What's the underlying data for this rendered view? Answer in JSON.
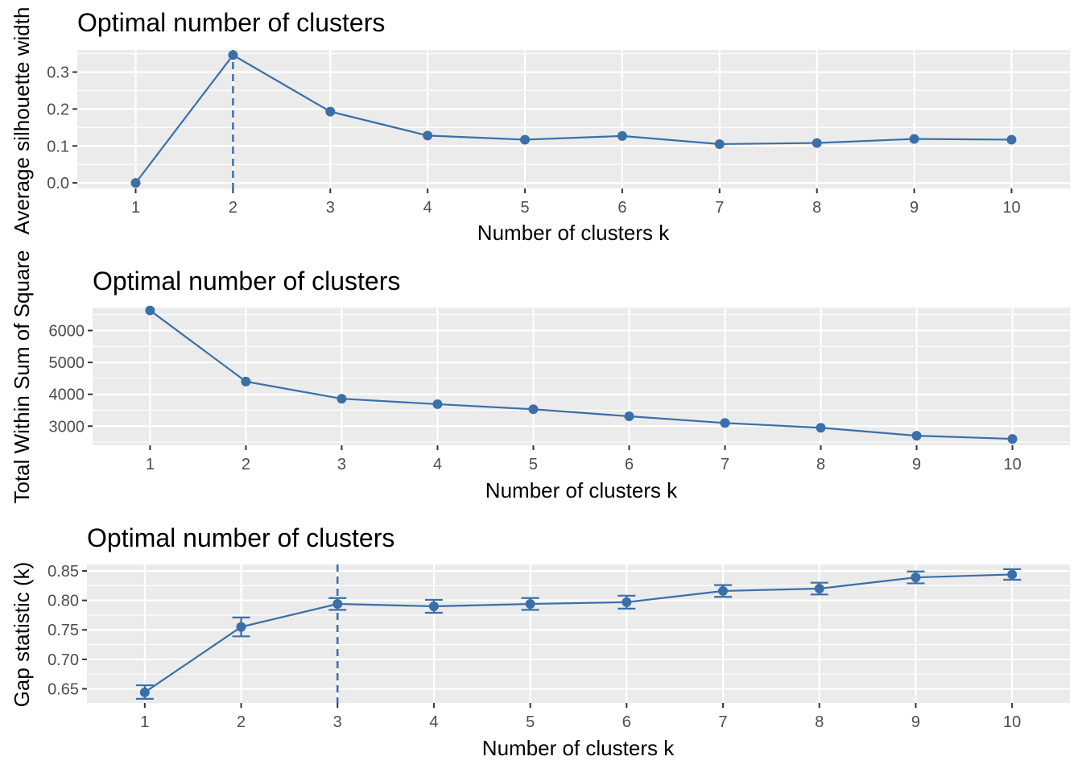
{
  "colors": {
    "series": "#3a6fa8",
    "panel": "#ebebeb",
    "grid": "#ffffff",
    "tick_text": "#4d4d4d"
  },
  "chart_data": [
    {
      "type": "line",
      "title": "Optimal number of clusters",
      "xlabel": "Number of clusters k",
      "ylabel": "Average silhouette width",
      "x": [
        1,
        2,
        3,
        4,
        5,
        6,
        7,
        8,
        9,
        10
      ],
      "series": [
        {
          "values": [
            0.0,
            0.346,
            0.193,
            0.128,
            0.117,
            0.127,
            0.105,
            0.108,
            0.119,
            0.117
          ]
        }
      ],
      "ylim": [
        -0.015,
        0.36
      ],
      "xlim": [
        0.4,
        10.6
      ],
      "yticks": [
        0.0,
        0.1,
        0.2,
        0.3
      ],
      "ytick_labels": [
        "0.0",
        "0.1",
        "0.2",
        "0.3"
      ],
      "xticks": [
        1,
        2,
        3,
        4,
        5,
        6,
        7,
        8,
        9,
        10
      ],
      "xtick_labels": [
        "1",
        "2",
        "3",
        "4",
        "5",
        "6",
        "7",
        "8",
        "9",
        "10"
      ],
      "vline_x": 2,
      "grid": true,
      "legend": "none"
    },
    {
      "type": "line",
      "title": "Optimal number of clusters",
      "xlabel": "Number of clusters k",
      "ylabel": "Total Within Sum of Square",
      "x": [
        1,
        2,
        3,
        4,
        5,
        6,
        7,
        8,
        9,
        10
      ],
      "series": [
        {
          "values": [
            6630,
            4400,
            3860,
            3690,
            3530,
            3310,
            3100,
            2950,
            2700,
            2600
          ]
        }
      ],
      "ylim": [
        2400,
        6720
      ],
      "xlim": [
        0.4,
        10.6
      ],
      "yticks": [
        3000,
        4000,
        5000,
        6000
      ],
      "ytick_labels": [
        "3000",
        "4000",
        "5000",
        "6000"
      ],
      "xticks": [
        1,
        2,
        3,
        4,
        5,
        6,
        7,
        8,
        9,
        10
      ],
      "xtick_labels": [
        "1",
        "2",
        "3",
        "4",
        "5",
        "6",
        "7",
        "8",
        "9",
        "10"
      ],
      "grid": true,
      "legend": "none"
    },
    {
      "type": "line",
      "title": "Optimal number of clusters",
      "xlabel": "Number of clusters k",
      "ylabel": "Gap statistic (k)",
      "x": [
        1,
        2,
        3,
        4,
        5,
        6,
        7,
        8,
        9,
        10
      ],
      "series": [
        {
          "values": [
            0.644,
            0.755,
            0.794,
            0.79,
            0.794,
            0.797,
            0.816,
            0.82,
            0.839,
            0.844
          ]
        }
      ],
      "error_bars": {
        "lower": [
          0.633,
          0.739,
          0.784,
          0.779,
          0.784,
          0.786,
          0.806,
          0.81,
          0.829,
          0.835
        ],
        "upper": [
          0.656,
          0.771,
          0.804,
          0.801,
          0.804,
          0.808,
          0.826,
          0.83,
          0.849,
          0.853
        ]
      },
      "ylim": [
        0.626,
        0.861
      ],
      "xlim": [
        0.4,
        10.6
      ],
      "yticks": [
        0.65,
        0.7,
        0.75,
        0.8,
        0.85
      ],
      "ytick_labels": [
        "0.65",
        "0.70",
        "0.75",
        "0.80",
        "0.85"
      ],
      "xticks": [
        1,
        2,
        3,
        4,
        5,
        6,
        7,
        8,
        9,
        10
      ],
      "xtick_labels": [
        "1",
        "2",
        "3",
        "4",
        "5",
        "6",
        "7",
        "8",
        "9",
        "10"
      ],
      "vline_x": 3,
      "grid": true,
      "legend": "none"
    }
  ]
}
